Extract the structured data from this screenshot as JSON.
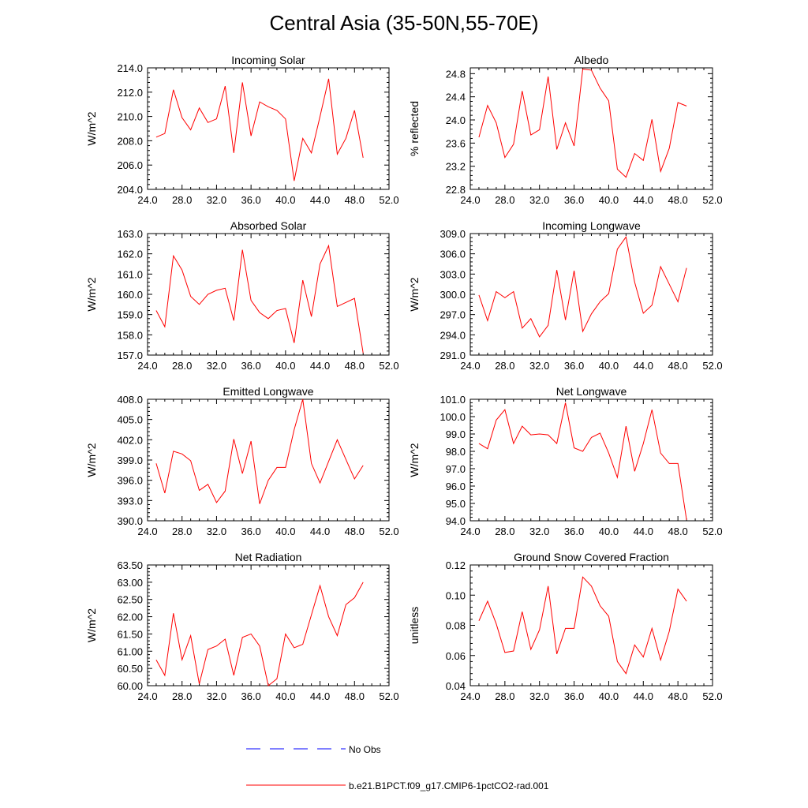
{
  "figure": {
    "title": "Central Asia (35-50N,55-70E)"
  },
  "legend": {
    "obs_label": "No Obs",
    "model_label": "b.e21.B1PCT.f09_g17.CMIP6-1pctCO2-rad.001",
    "obs_color": "#0000ff",
    "model_color": "#ff0000"
  },
  "chart_data": [
    {
      "type": "line",
      "title": "Incoming Solar",
      "ylabel": "W/m^2",
      "xlabel": "",
      "xlim": [
        24,
        52
      ],
      "ylim": [
        204,
        214
      ],
      "yticks": [
        204,
        206,
        208,
        210,
        212,
        214
      ],
      "ytick_decimals": 1,
      "x": [
        25,
        26,
        27,
        28,
        29,
        30,
        31,
        32,
        33,
        34,
        35,
        36,
        37,
        38,
        39,
        40,
        41,
        42,
        43,
        44,
        45,
        46,
        47,
        48,
        49
      ],
      "series": [
        {
          "values": [
            208.3,
            208.6,
            212.2,
            209.9,
            208.9,
            210.7,
            209.5,
            209.8,
            212.5,
            207.0,
            212.8,
            208.4,
            211.2,
            210.8,
            210.5,
            209.8,
            204.7,
            208.2,
            207.0,
            210.0,
            213.1,
            206.9,
            208.2,
            210.5,
            206.6
          ]
        }
      ]
    },
    {
      "type": "line",
      "title": "Albedo",
      "ylabel": "% reflected",
      "xlabel": "",
      "xlim": [
        24,
        52
      ],
      "ylim": [
        22.8,
        24.9
      ],
      "yticks": [
        22.8,
        23.2,
        23.6,
        24.0,
        24.4,
        24.8
      ],
      "ytick_decimals": 1,
      "x": [
        25,
        26,
        27,
        28,
        29,
        30,
        31,
        32,
        33,
        34,
        35,
        36,
        37,
        38,
        39,
        40,
        41,
        42,
        43,
        44,
        45,
        46,
        47,
        48,
        49
      ],
      "series": [
        {
          "values": [
            23.7,
            24.25,
            23.95,
            23.35,
            23.58,
            24.5,
            23.74,
            23.83,
            24.75,
            23.49,
            23.95,
            23.55,
            24.88,
            24.86,
            24.55,
            24.33,
            23.15,
            23.01,
            23.42,
            23.3,
            24.01,
            23.11,
            23.51,
            24.3,
            24.24
          ]
        }
      ]
    },
    {
      "type": "line",
      "title": "Absorbed Solar",
      "ylabel": "W/m^2",
      "xlabel": "",
      "xlim": [
        24,
        52
      ],
      "ylim": [
        157,
        163
      ],
      "yticks": [
        157,
        158,
        159,
        160,
        161,
        162,
        163
      ],
      "ytick_decimals": 1,
      "x": [
        25,
        26,
        27,
        28,
        29,
        30,
        31,
        32,
        33,
        34,
        35,
        36,
        37,
        38,
        39,
        40,
        41,
        42,
        43,
        44,
        45,
        46,
        47,
        48,
        49
      ],
      "series": [
        {
          "values": [
            159.2,
            158.4,
            161.9,
            161.2,
            159.9,
            159.5,
            160.0,
            160.2,
            160.3,
            158.7,
            162.2,
            159.7,
            159.1,
            158.8,
            159.2,
            159.3,
            157.6,
            160.7,
            158.9,
            161.5,
            162.4,
            159.4,
            159.6,
            159.8,
            157.1
          ]
        }
      ]
    },
    {
      "type": "line",
      "title": "Incoming Longwave",
      "ylabel": "W/m^2",
      "xlabel": "",
      "xlim": [
        24,
        52
      ],
      "ylim": [
        291,
        309
      ],
      "yticks": [
        291,
        294,
        297,
        300,
        303,
        306,
        309
      ],
      "ytick_decimals": 1,
      "x": [
        25,
        26,
        27,
        28,
        29,
        30,
        31,
        32,
        33,
        34,
        35,
        36,
        37,
        38,
        39,
        40,
        41,
        42,
        43,
        44,
        45,
        46,
        47,
        48,
        49
      ],
      "series": [
        {
          "values": [
            299.9,
            296.1,
            300.4,
            299.5,
            300.4,
            295.0,
            296.4,
            293.7,
            295.4,
            303.6,
            296.2,
            303.5,
            294.5,
            297.1,
            298.9,
            300.1,
            306.7,
            308.5,
            301.8,
            297.2,
            298.4,
            304.1,
            301.5,
            298.9,
            303.9
          ]
        }
      ]
    },
    {
      "type": "line",
      "title": "Emitted Longwave",
      "ylabel": "W/m^2",
      "xlabel": "",
      "xlim": [
        24,
        52
      ],
      "ylim": [
        390,
        408
      ],
      "yticks": [
        390,
        393,
        396,
        399,
        402,
        405,
        408
      ],
      "ytick_decimals": 1,
      "x": [
        25,
        26,
        27,
        28,
        29,
        30,
        31,
        32,
        33,
        34,
        35,
        36,
        37,
        38,
        39,
        40,
        41,
        42,
        43,
        44,
        45,
        46,
        47,
        48,
        49
      ],
      "series": [
        {
          "values": [
            398.5,
            394.1,
            400.3,
            399.9,
            398.9,
            394.5,
            395.4,
            392.7,
            394.4,
            402.1,
            397.0,
            401.8,
            392.5,
            396.0,
            397.9,
            397.9,
            403.5,
            408.0,
            398.5,
            395.6,
            398.8,
            402.0,
            399.1,
            396.2,
            398.2
          ]
        }
      ]
    },
    {
      "type": "line",
      "title": "Net Longwave",
      "ylabel": "W/m^2",
      "xlabel": "",
      "xlim": [
        24,
        52
      ],
      "ylim": [
        94,
        101
      ],
      "yticks": [
        94,
        95,
        96,
        97,
        98,
        99,
        100,
        101
      ],
      "ytick_decimals": 1,
      "x": [
        25,
        26,
        27,
        28,
        29,
        30,
        31,
        32,
        33,
        34,
        35,
        36,
        37,
        38,
        39,
        40,
        41,
        42,
        43,
        44,
        45,
        46,
        47,
        48,
        49
      ],
      "series": [
        {
          "values": [
            98.45,
            98.15,
            99.8,
            100.4,
            98.45,
            99.45,
            98.95,
            99.0,
            98.95,
            98.45,
            100.8,
            98.2,
            98.0,
            98.8,
            99.05,
            97.9,
            96.5,
            99.45,
            96.85,
            98.45,
            100.4,
            97.9,
            97.3,
            97.3,
            94.05
          ]
        }
      ]
    },
    {
      "type": "line",
      "title": "Net Radiation",
      "ylabel": "W/m^2",
      "xlabel": "",
      "xlim": [
        24,
        52
      ],
      "ylim": [
        60,
        63.5
      ],
      "yticks": [
        60.0,
        60.5,
        61.0,
        61.5,
        62.0,
        62.5,
        63.0,
        63.5
      ],
      "ytick_decimals": 2,
      "x": [
        25,
        26,
        27,
        28,
        29,
        30,
        31,
        32,
        33,
        34,
        35,
        36,
        37,
        38,
        39,
        40,
        41,
        42,
        43,
        44,
        45,
        46,
        47,
        48,
        49
      ],
      "series": [
        {
          "values": [
            60.75,
            60.3,
            62.1,
            60.75,
            61.45,
            60.05,
            61.05,
            61.15,
            61.35,
            60.3,
            61.4,
            61.5,
            61.15,
            60.0,
            60.2,
            61.5,
            61.1,
            61.2,
            62.05,
            62.9,
            62.0,
            61.45,
            62.35,
            62.55,
            63.0
          ]
        }
      ]
    },
    {
      "type": "line",
      "title": "Ground Snow Covered Fraction",
      "ylabel": "unitless",
      "xlabel": "",
      "xlim": [
        24,
        52
      ],
      "ylim": [
        0.04,
        0.12
      ],
      "yticks": [
        0.04,
        0.06,
        0.08,
        0.1,
        0.12
      ],
      "ytick_decimals": 2,
      "x": [
        25,
        26,
        27,
        28,
        29,
        30,
        31,
        32,
        33,
        34,
        35,
        36,
        37,
        38,
        39,
        40,
        41,
        42,
        43,
        44,
        45,
        46,
        47,
        48,
        49
      ],
      "series": [
        {
          "values": [
            0.083,
            0.096,
            0.081,
            0.062,
            0.063,
            0.089,
            0.064,
            0.077,
            0.106,
            0.061,
            0.078,
            0.078,
            0.112,
            0.106,
            0.093,
            0.086,
            0.056,
            0.048,
            0.067,
            0.059,
            0.078,
            0.057,
            0.076,
            0.104,
            0.096
          ]
        }
      ]
    }
  ],
  "xaxis": {
    "ticks": [
      24,
      28,
      32,
      36,
      40,
      44,
      48,
      52
    ],
    "tick_decimals": 1
  }
}
